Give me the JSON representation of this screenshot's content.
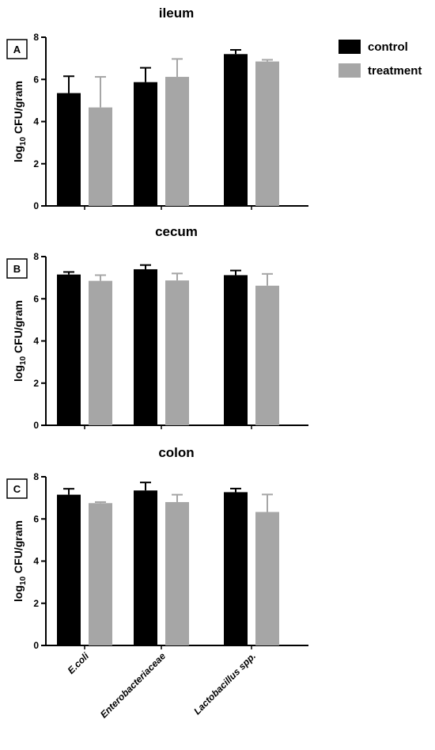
{
  "legend": [
    {
      "name": "control",
      "color": "#000000"
    },
    {
      "name": "treatment",
      "color": "#a6a6a6"
    }
  ],
  "chart_data": [
    {
      "type": "bar",
      "panel": "A",
      "title": "ileum",
      "ylabel": "log10 CFU/gram",
      "ylim": [
        0,
        8
      ],
      "yticks": [
        "0",
        "2",
        "4",
        "6",
        "8"
      ],
      "categories": [
        "E.coli",
        "Enterobacteriaceae",
        "Lactobacillus spp."
      ],
      "series": [
        {
          "name": "control",
          "color": "#000000",
          "values": [
            5.35,
            5.87,
            7.2
          ],
          "errors": [
            0.8,
            0.68,
            0.2
          ]
        },
        {
          "name": "treatment",
          "color": "#a6a6a6",
          "values": [
            4.67,
            6.12,
            6.85
          ],
          "errors": [
            1.45,
            0.85,
            0.08
          ]
        }
      ]
    },
    {
      "type": "bar",
      "panel": "B",
      "title": "cecum",
      "ylabel": "log10 CFU/gram",
      "ylim": [
        0,
        8
      ],
      "yticks": [
        "0",
        "2",
        "4",
        "6",
        "8"
      ],
      "categories": [
        "E.coli",
        "Enterobacteriaceae",
        "Lactobacillus spp."
      ],
      "series": [
        {
          "name": "control",
          "color": "#000000",
          "values": [
            7.15,
            7.4,
            7.12
          ],
          "errors": [
            0.12,
            0.2,
            0.22
          ]
        },
        {
          "name": "treatment",
          "color": "#a6a6a6",
          "values": [
            6.85,
            6.87,
            6.62
          ],
          "errors": [
            0.27,
            0.33,
            0.56
          ]
        }
      ]
    },
    {
      "type": "bar",
      "panel": "C",
      "title": "colon",
      "ylabel": "log10 CFU/gram",
      "ylim": [
        0,
        8
      ],
      "yticks": [
        "0",
        "2",
        "4",
        "6",
        "8"
      ],
      "categories": [
        "E.coli",
        "Enterobacteriaceae",
        "Lactobacillus spp."
      ],
      "series": [
        {
          "name": "control",
          "color": "#000000",
          "values": [
            7.15,
            7.35,
            7.27
          ],
          "errors": [
            0.28,
            0.38,
            0.17
          ]
        },
        {
          "name": "treatment",
          "color": "#a6a6a6",
          "values": [
            6.75,
            6.8,
            6.33
          ],
          "errors": [
            0.05,
            0.35,
            0.83
          ]
        }
      ]
    }
  ]
}
